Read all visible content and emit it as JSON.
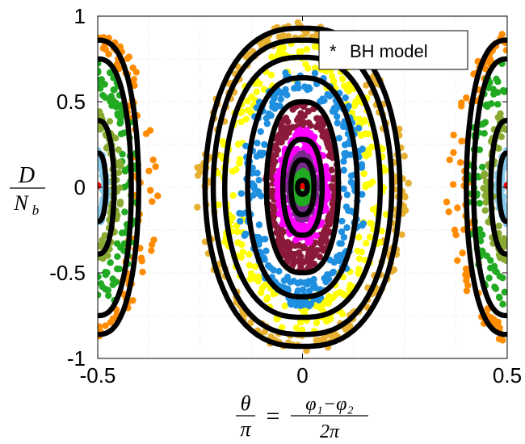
{
  "chart_data": {
    "type": "scatter",
    "title": "",
    "xlabel": {
      "lhs_num": "θ",
      "lhs_den": "π",
      "equals": "=",
      "rhs_num": "φ₁−φ₂",
      "rhs_den": "2π"
    },
    "ylabel": {
      "num": "D",
      "den": "N_b",
      "den_main": "N",
      "den_sub": "b"
    },
    "xlim": [
      -0.5,
      0.5
    ],
    "ylim": [
      -1,
      1
    ],
    "xticks": [
      "-0.5",
      "0",
      "0.5"
    ],
    "yticks": [
      "1",
      "0.5",
      "0",
      "-0.5",
      "-1"
    ],
    "grid": true,
    "legend": {
      "position": "top-right",
      "marker": "*",
      "label": "BH model"
    },
    "colors": {
      "bh_model": "#000000",
      "orange": "#ff8c00",
      "gold": "#e8b030",
      "yellow": "#ffff00",
      "blue": "#1f8fe0",
      "green": "#22aa22",
      "olive": "#88aa33",
      "maroon": "#8b1a3a",
      "magenta": "#ff00ff",
      "purple": "#7a2a8a",
      "lightblue": "#88ccee",
      "red": "#ff0000"
    },
    "bh_model_orbits": {
      "libration_amplitudes_D": [
        0.04,
        0.16,
        0.28,
        0.5,
        0.64,
        0.76,
        0.86,
        0.93
      ],
      "libration_half_widths_theta": [
        0.012,
        0.028,
        0.048,
        0.088,
        0.134,
        0.19,
        0.218,
        0.238
      ],
      "running_orbit_peaks_D": [
        0.86,
        0.75,
        0.39,
        0.2
      ],
      "running_orbit_half_widths_theta": [
        0.1,
        0.082,
        0.04,
        0.02
      ]
    },
    "point_series": [
      {
        "color_key": "gold",
        "kind": "band_center",
        "D": [
          0.86,
          0.97
        ],
        "theta_half_width": [
          0.21,
          0.26
        ]
      },
      {
        "color_key": "yellow",
        "kind": "band_center",
        "D": [
          0.62,
          0.86
        ],
        "theta_half_width": [
          0.15,
          0.21
        ]
      },
      {
        "color_key": "blue",
        "kind": "band_center",
        "D": [
          0.55,
          0.7
        ],
        "theta_half_width": [
          0.1,
          0.16
        ]
      },
      {
        "color_key": "maroon",
        "kind": "band_center",
        "D": [
          0.34,
          0.5
        ],
        "theta_half_width": [
          0.07,
          0.09
        ]
      },
      {
        "color_key": "magenta",
        "kind": "band_center",
        "D": [
          0.2,
          0.34
        ],
        "theta_half_width": [
          0.04,
          0.065
        ]
      },
      {
        "color_key": "purple",
        "kind": "band_center",
        "D": [
          0.1,
          0.2
        ],
        "theta_half_width": [
          0.025,
          0.035
        ]
      },
      {
        "color_key": "green",
        "kind": "band_center",
        "D": [
          0.03,
          0.1
        ],
        "theta_half_width": [
          0.01,
          0.02
        ]
      },
      {
        "color_key": "orange",
        "kind": "band_edge",
        "D": [
          0.8,
          0.9
        ],
        "theta_half_width": [
          0.08,
          0.15
        ]
      },
      {
        "color_key": "green",
        "kind": "band_edge",
        "D": [
          0.5,
          0.74
        ],
        "theta_half_width": [
          0.06,
          0.1
        ]
      },
      {
        "color_key": "olive",
        "kind": "band_edge",
        "D": [
          0.3,
          0.45
        ],
        "theta_half_width": [
          0.03,
          0.06
        ]
      },
      {
        "color_key": "lightblue",
        "kind": "band_edge",
        "D": [
          0.12,
          0.22
        ],
        "theta_half_width": [
          0.01,
          0.025
        ]
      }
    ]
  }
}
